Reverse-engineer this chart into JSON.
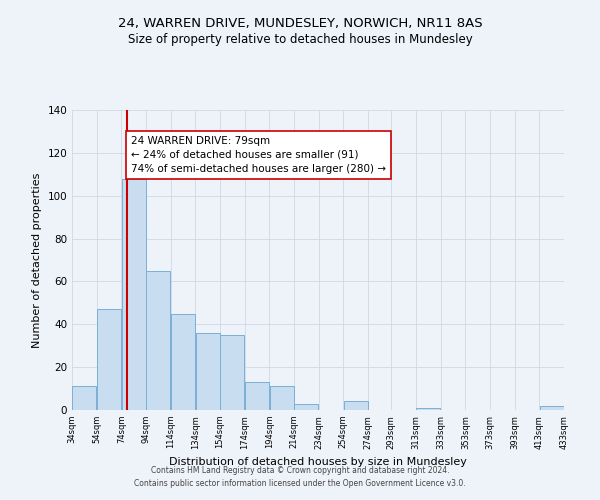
{
  "title": "24, WARREN DRIVE, MUNDESLEY, NORWICH, NR11 8AS",
  "subtitle": "Size of property relative to detached houses in Mundesley",
  "xlabel": "Distribution of detached houses by size in Mundesley",
  "ylabel": "Number of detached properties",
  "bar_left_edges": [
    34,
    54,
    74,
    94,
    114,
    134,
    154,
    174,
    194,
    214,
    234,
    254,
    274,
    293,
    313,
    333,
    353,
    373,
    393,
    413
  ],
  "bar_heights": [
    11,
    47,
    108,
    65,
    45,
    36,
    35,
    13,
    11,
    3,
    0,
    4,
    0,
    0,
    1,
    0,
    0,
    0,
    0,
    2
  ],
  "bin_width": 20,
  "bar_color": "#c8ddf0",
  "bar_edge_color": "#7bafd4",
  "tick_labels": [
    "34sqm",
    "54sqm",
    "74sqm",
    "94sqm",
    "114sqm",
    "134sqm",
    "154sqm",
    "174sqm",
    "194sqm",
    "214sqm",
    "234sqm",
    "254sqm",
    "274sqm",
    "293sqm",
    "313sqm",
    "333sqm",
    "353sqm",
    "373sqm",
    "393sqm",
    "413sqm",
    "433sqm"
  ],
  "ylim": [
    0,
    140
  ],
  "yticks": [
    0,
    20,
    40,
    60,
    80,
    100,
    120,
    140
  ],
  "property_line_x": 79,
  "property_line_color": "#cc0000",
  "annotation_text": "24 WARREN DRIVE: 79sqm\n← 24% of detached houses are smaller (91)\n74% of semi-detached houses are larger (280) →",
  "annotation_box_color": "#ffffff",
  "annotation_box_edge_color": "#cc0000",
  "footer_text": "Contains HM Land Registry data © Crown copyright and database right 2024.\nContains public sector information licensed under the Open Government Licence v3.0.",
  "background_color": "#eef2f9",
  "grid_color": "#d0d8e8",
  "title_fontsize": 9.5,
  "subtitle_fontsize": 8.5,
  "xlabel_fontsize": 8,
  "ylabel_fontsize": 8,
  "annotation_fontsize": 7.5,
  "footer_fontsize": 5.5
}
